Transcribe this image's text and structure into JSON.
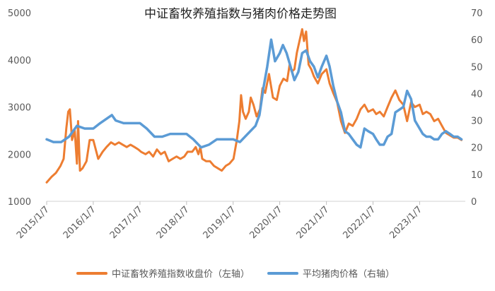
{
  "chart_data": {
    "type": "line",
    "title": "中证畜牧养殖指数与猪肉价格走势图",
    "grid": "none",
    "legend_position": "bottom",
    "x_axis": {
      "type": "date",
      "range": [
        "2015-01-07",
        "2023-12-31"
      ],
      "ticks": [
        "2015/1/7",
        "2016/1/7",
        "2017/1/7",
        "2018/1/7",
        "2019/1/7",
        "2020/1/7",
        "2021/1/7",
        "2022/1/7",
        "2023/1/7"
      ]
    },
    "y_left": {
      "range": [
        1000,
        5000
      ],
      "ticks": [
        1000,
        2000,
        3000,
        4000,
        5000
      ]
    },
    "y_right": {
      "range": [
        0,
        70
      ],
      "ticks": [
        0,
        10,
        20,
        30,
        40,
        50,
        60,
        70
      ]
    },
    "colors": {
      "left_series": "#ED7D31",
      "right_series": "#5B9BD5"
    },
    "series": [
      {
        "name": "中证畜牧养殖指数收盘价（左轴）",
        "axis": "left",
        "points": [
          [
            "2015-01-07",
            1400
          ],
          [
            "2015-02-15",
            1520
          ],
          [
            "2015-03-20",
            1600
          ],
          [
            "2015-04-25",
            1750
          ],
          [
            "2015-05-20",
            1900
          ],
          [
            "2015-06-10",
            2550
          ],
          [
            "2015-06-25",
            2900
          ],
          [
            "2015-07-08",
            2950
          ],
          [
            "2015-07-25",
            2300
          ],
          [
            "2015-08-15",
            2500
          ],
          [
            "2015-09-01",
            1800
          ],
          [
            "2015-09-10",
            2700
          ],
          [
            "2015-09-25",
            1650
          ],
          [
            "2015-10-15",
            1700
          ],
          [
            "2015-11-15",
            1850
          ],
          [
            "2015-12-10",
            2300
          ],
          [
            "2016-01-07",
            2300
          ],
          [
            "2016-02-15",
            1900
          ],
          [
            "2016-03-20",
            2050
          ],
          [
            "2016-04-20",
            2150
          ],
          [
            "2016-05-25",
            2250
          ],
          [
            "2016-06-25",
            2200
          ],
          [
            "2016-07-25",
            2250
          ],
          [
            "2016-08-25",
            2200
          ],
          [
            "2016-09-25",
            2150
          ],
          [
            "2016-10-25",
            2200
          ],
          [
            "2016-11-25",
            2150
          ],
          [
            "2016-12-25",
            2100
          ],
          [
            "2017-01-15",
            2050
          ],
          [
            "2017-02-20",
            2000
          ],
          [
            "2017-03-20",
            2050
          ],
          [
            "2017-04-20",
            1950
          ],
          [
            "2017-05-20",
            2100
          ],
          [
            "2017-06-20",
            2000
          ],
          [
            "2017-07-20",
            2050
          ],
          [
            "2017-08-20",
            1850
          ],
          [
            "2017-09-20",
            1900
          ],
          [
            "2017-10-20",
            1950
          ],
          [
            "2017-11-20",
            1900
          ],
          [
            "2017-12-20",
            1950
          ],
          [
            "2018-01-15",
            2050
          ],
          [
            "2018-02-20",
            2050
          ],
          [
            "2018-03-20",
            2150
          ],
          [
            "2018-04-10",
            2000
          ],
          [
            "2018-04-25",
            2150
          ],
          [
            "2018-05-10",
            1900
          ],
          [
            "2018-06-10",
            1850
          ],
          [
            "2018-07-10",
            1850
          ],
          [
            "2018-08-10",
            1750
          ],
          [
            "2018-09-10",
            1700
          ],
          [
            "2018-10-10",
            1650
          ],
          [
            "2018-11-10",
            1750
          ],
          [
            "2018-12-10",
            1800
          ],
          [
            "2019-01-10",
            1900
          ],
          [
            "2019-02-05",
            2300
          ],
          [
            "2019-02-25",
            2700
          ],
          [
            "2019-03-10",
            3250
          ],
          [
            "2019-03-25",
            2900
          ],
          [
            "2019-04-15",
            2750
          ],
          [
            "2019-05-10",
            2900
          ],
          [
            "2019-05-25",
            3200
          ],
          [
            "2019-06-15",
            3050
          ],
          [
            "2019-07-10",
            2800
          ],
          [
            "2019-08-05",
            2950
          ],
          [
            "2019-08-25",
            3400
          ],
          [
            "2019-09-15",
            3300
          ],
          [
            "2019-10-15",
            3700
          ],
          [
            "2019-11-15",
            3200
          ],
          [
            "2019-12-15",
            3150
          ],
          [
            "2020-01-07",
            3450
          ],
          [
            "2020-02-05",
            3600
          ],
          [
            "2020-03-05",
            3550
          ],
          [
            "2020-03-25",
            3900
          ],
          [
            "2020-04-10",
            3750
          ],
          [
            "2020-05-01",
            3800
          ],
          [
            "2020-05-20",
            4150
          ],
          [
            "2020-06-10",
            4400
          ],
          [
            "2020-07-01",
            4650
          ],
          [
            "2020-07-15",
            4400
          ],
          [
            "2020-08-01",
            4600
          ],
          [
            "2020-08-20",
            3900
          ],
          [
            "2020-09-10",
            3800
          ],
          [
            "2020-10-01",
            3650
          ],
          [
            "2020-11-01",
            3500
          ],
          [
            "2020-12-01",
            3700
          ],
          [
            "2021-01-07",
            3800
          ],
          [
            "2021-02-01",
            3500
          ],
          [
            "2021-03-01",
            3300
          ],
          [
            "2021-04-01",
            3100
          ],
          [
            "2021-05-01",
            2700
          ],
          [
            "2021-06-01",
            2450
          ],
          [
            "2021-07-01",
            2650
          ],
          [
            "2021-08-01",
            2600
          ],
          [
            "2021-09-01",
            2750
          ],
          [
            "2021-10-01",
            2950
          ],
          [
            "2021-11-01",
            3050
          ],
          [
            "2021-12-01",
            2900
          ],
          [
            "2022-01-07",
            2950
          ],
          [
            "2022-02-01",
            2850
          ],
          [
            "2022-03-01",
            2900
          ],
          [
            "2022-04-01",
            2800
          ],
          [
            "2022-05-01",
            3000
          ],
          [
            "2022-06-01",
            3200
          ],
          [
            "2022-07-01",
            3350
          ],
          [
            "2022-08-01",
            3150
          ],
          [
            "2022-09-01",
            3050
          ],
          [
            "2022-10-01",
            2700
          ],
          [
            "2022-11-01",
            3100
          ],
          [
            "2022-12-01",
            3000
          ],
          [
            "2023-01-07",
            3050
          ],
          [
            "2023-02-01",
            2850
          ],
          [
            "2023-03-01",
            2900
          ],
          [
            "2023-04-01",
            2850
          ],
          [
            "2023-05-01",
            2700
          ],
          [
            "2023-06-01",
            2750
          ],
          [
            "2023-07-01",
            2600
          ],
          [
            "2023-08-01",
            2450
          ],
          [
            "2023-09-01",
            2400
          ],
          [
            "2023-10-01",
            2350
          ],
          [
            "2023-11-01",
            2350
          ],
          [
            "2023-12-01",
            2300
          ]
        ]
      },
      {
        "name": "平均猪肉价格（右轴）",
        "axis": "right",
        "points": [
          [
            "2015-01-07",
            23
          ],
          [
            "2015-03-01",
            22
          ],
          [
            "2015-05-01",
            22
          ],
          [
            "2015-07-01",
            24
          ],
          [
            "2015-09-01",
            28
          ],
          [
            "2015-11-01",
            27
          ],
          [
            "2016-01-07",
            27
          ],
          [
            "2016-03-01",
            29
          ],
          [
            "2016-05-01",
            31
          ],
          [
            "2016-06-01",
            32
          ],
          [
            "2016-07-01",
            30
          ],
          [
            "2016-09-01",
            29
          ],
          [
            "2016-11-01",
            29
          ],
          [
            "2017-01-07",
            29
          ],
          [
            "2017-03-01",
            27
          ],
          [
            "2017-05-01",
            24
          ],
          [
            "2017-07-01",
            24
          ],
          [
            "2017-09-01",
            25
          ],
          [
            "2017-11-01",
            25
          ],
          [
            "2018-01-07",
            25
          ],
          [
            "2018-03-01",
            23
          ],
          [
            "2018-05-01",
            20
          ],
          [
            "2018-07-01",
            21
          ],
          [
            "2018-09-01",
            23
          ],
          [
            "2018-11-01",
            23
          ],
          [
            "2019-01-07",
            23
          ],
          [
            "2019-03-01",
            22
          ],
          [
            "2019-05-01",
            25
          ],
          [
            "2019-07-01",
            28
          ],
          [
            "2019-08-01",
            32
          ],
          [
            "2019-09-01",
            42
          ],
          [
            "2019-10-01",
            50
          ],
          [
            "2019-11-01",
            60
          ],
          [
            "2019-12-01",
            52
          ],
          [
            "2020-01-07",
            55
          ],
          [
            "2020-02-01",
            58
          ],
          [
            "2020-03-01",
            55
          ],
          [
            "2020-04-01",
            50
          ],
          [
            "2020-05-01",
            45
          ],
          [
            "2020-06-01",
            48
          ],
          [
            "2020-07-01",
            55
          ],
          [
            "2020-08-01",
            56
          ],
          [
            "2020-09-01",
            52
          ],
          [
            "2020-10-01",
            50
          ],
          [
            "2020-11-01",
            46
          ],
          [
            "2020-12-01",
            50
          ],
          [
            "2021-01-07",
            54
          ],
          [
            "2021-02-01",
            50
          ],
          [
            "2021-03-01",
            43
          ],
          [
            "2021-04-01",
            37
          ],
          [
            "2021-05-01",
            33
          ],
          [
            "2021-06-01",
            26
          ],
          [
            "2021-07-01",
            25
          ],
          [
            "2021-08-01",
            23
          ],
          [
            "2021-09-01",
            21
          ],
          [
            "2021-10-01",
            20
          ],
          [
            "2021-11-01",
            27
          ],
          [
            "2021-12-01",
            26
          ],
          [
            "2022-01-07",
            25
          ],
          [
            "2022-02-01",
            23
          ],
          [
            "2022-03-01",
            21
          ],
          [
            "2022-04-01",
            21
          ],
          [
            "2022-05-01",
            24
          ],
          [
            "2022-06-01",
            25
          ],
          [
            "2022-07-01",
            33
          ],
          [
            "2022-08-01",
            34
          ],
          [
            "2022-09-01",
            35
          ],
          [
            "2022-10-01",
            41
          ],
          [
            "2022-11-01",
            38
          ],
          [
            "2022-12-01",
            30
          ],
          [
            "2023-01-07",
            27
          ],
          [
            "2023-02-01",
            25
          ],
          [
            "2023-03-01",
            24
          ],
          [
            "2023-04-01",
            24
          ],
          [
            "2023-05-01",
            23
          ],
          [
            "2023-06-01",
            23
          ],
          [
            "2023-07-01",
            25
          ],
          [
            "2023-08-01",
            26
          ],
          [
            "2023-09-01",
            25
          ],
          [
            "2023-10-01",
            24
          ],
          [
            "2023-11-01",
            24
          ],
          [
            "2023-12-01",
            23
          ]
        ]
      }
    ]
  }
}
